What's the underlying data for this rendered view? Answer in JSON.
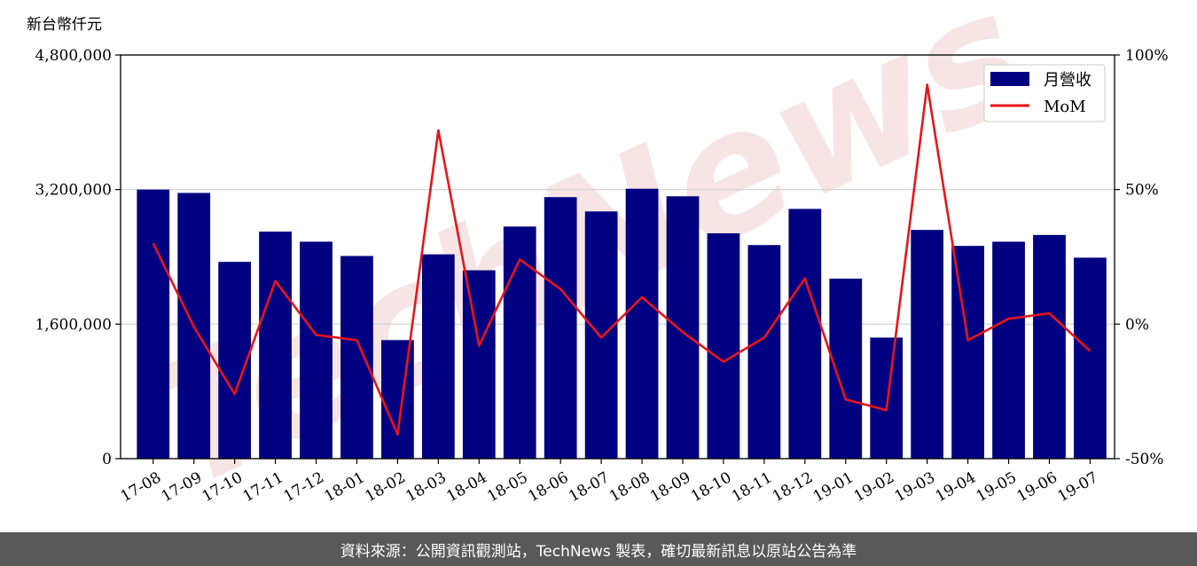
{
  "unit_label": "新台幣仟元",
  "footer_text": "資料來源：公開資訊觀測站，TechNews 製表，確切最新訊息以原站公告為準",
  "watermark_text": "TechNews",
  "colors": {
    "bar": "#000080",
    "line": "#e8141a",
    "grid": "#d0d0d0",
    "footer_bg": "#595959",
    "watermark": "#f2d0d0"
  },
  "chart_data": {
    "type": "bar",
    "categories": [
      "17-08",
      "17-09",
      "17-10",
      "17-11",
      "17-12",
      "18-01",
      "18-02",
      "18-03",
      "18-04",
      "18-05",
      "18-06",
      "18-07",
      "18-08",
      "18-09",
      "18-10",
      "18-11",
      "18-12",
      "19-01",
      "19-02",
      "19-03",
      "19-04",
      "19-05",
      "19-06",
      "19-07"
    ],
    "series": [
      {
        "name": "月營收",
        "type": "bar",
        "axis": "left",
        "values": [
          3200000,
          3160000,
          2340000,
          2700000,
          2580000,
          2410000,
          1410000,
          2430000,
          2240000,
          2760000,
          3110000,
          2940000,
          3210000,
          3120000,
          2680000,
          2540000,
          2970000,
          2140000,
          1440000,
          2720000,
          2530000,
          2580000,
          2660000,
          2390000
        ]
      },
      {
        "name": "MoM",
        "type": "line",
        "axis": "right",
        "values": [
          30,
          -1,
          -26,
          16,
          -4,
          -6,
          -41,
          72,
          -8,
          24,
          13,
          -5,
          10,
          -3,
          -14,
          -5,
          17,
          -28,
          -32,
          89,
          -6,
          2,
          4,
          -10
        ]
      }
    ],
    "y_left": {
      "ylim": [
        0,
        4800000
      ],
      "ticks": [
        0,
        1600000,
        3200000,
        4800000
      ],
      "tick_labels": [
        "0",
        "1,600,000",
        "3,200,000",
        "4,800,000"
      ]
    },
    "y_right": {
      "ylim": [
        -50,
        100
      ],
      "ticks": [
        -50,
        0,
        50,
        100
      ],
      "tick_labels": [
        "-50%",
        "0%",
        "50%",
        "100%"
      ]
    },
    "grid": true,
    "legend_position": "top-right"
  }
}
